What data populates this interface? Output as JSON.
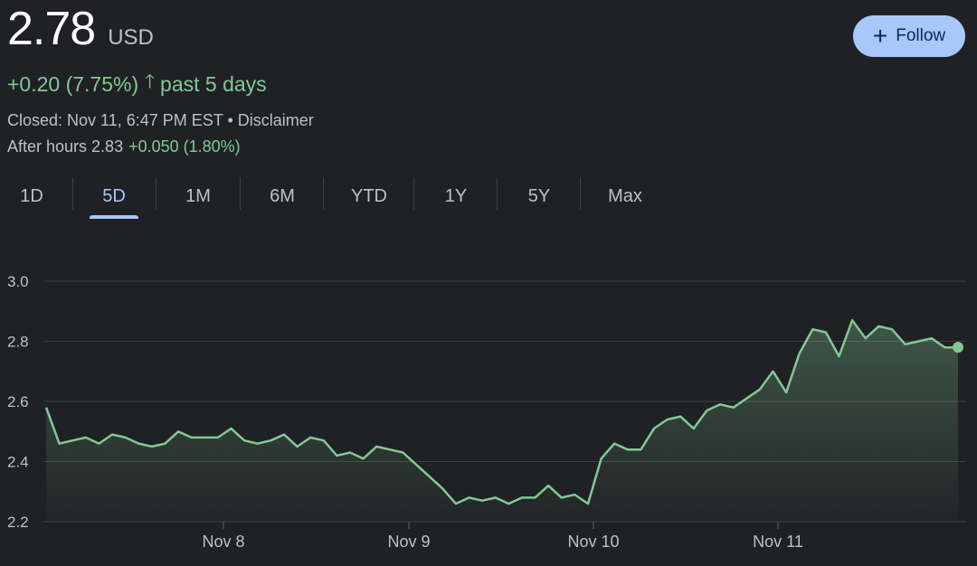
{
  "quote": {
    "price": "2.78",
    "currency": "USD",
    "change": "+0.20 (7.75%)",
    "period": "past 5 days",
    "closed": "Closed: Nov 11, 6:47 PM EST • Disclaimer",
    "after_hours_label": "After hours 2.83",
    "after_hours_change": "+0.050 (1.80%)"
  },
  "follow_button": {
    "label": "Follow"
  },
  "tabs": [
    {
      "label": "1D",
      "active": false
    },
    {
      "label": "5D",
      "active": true
    },
    {
      "label": "1M",
      "active": false
    },
    {
      "label": "6M",
      "active": false
    },
    {
      "label": "YTD",
      "active": false
    },
    {
      "label": "1Y",
      "active": false
    },
    {
      "label": "5Y",
      "active": false
    },
    {
      "label": "Max",
      "active": false
    }
  ],
  "colors": {
    "up": "#81c995",
    "accent": "#a8c7fa",
    "background": "#202124"
  },
  "chart_data": {
    "type": "line",
    "ylim": [
      2.2,
      3.0
    ],
    "yticks": [
      "3.0",
      "2.8",
      "2.6",
      "2.4",
      "2.2"
    ],
    "ytick_values": [
      3.0,
      2.8,
      2.6,
      2.4,
      2.2
    ],
    "xticks": [
      "Nov 8",
      "Nov 9",
      "Nov 10",
      "Nov 11"
    ],
    "grid": true,
    "series": [
      {
        "values": [
          2.58,
          2.46,
          2.47,
          2.48,
          2.46,
          2.49,
          2.48,
          2.46,
          2.45,
          2.46,
          2.5,
          2.48,
          2.48,
          2.48,
          2.51,
          2.47,
          2.46,
          2.47,
          2.49,
          2.45,
          2.48,
          2.47,
          2.42,
          2.43,
          2.41,
          2.45,
          2.44,
          2.43,
          2.39,
          2.35,
          2.31,
          2.26,
          2.28,
          2.27,
          2.28,
          2.26,
          2.28,
          2.28,
          2.32,
          2.28,
          2.29,
          2.26,
          2.41,
          2.46,
          2.44,
          2.44,
          2.51,
          2.54,
          2.55,
          2.51,
          2.57,
          2.59,
          2.58,
          2.61,
          2.64,
          2.7,
          2.63,
          2.76,
          2.84,
          2.83,
          2.75,
          2.87,
          2.81,
          2.85,
          2.84,
          2.79,
          2.8,
          2.81,
          2.78,
          2.78
        ]
      }
    ]
  }
}
